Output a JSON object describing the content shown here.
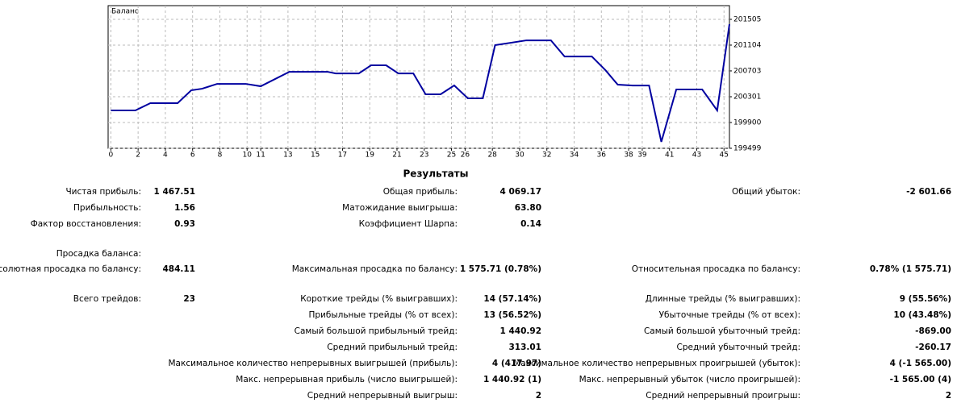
{
  "chart_data": {
    "type": "line",
    "title": "Баланс",
    "x": [
      0,
      1.8,
      2.9,
      4.9,
      5.9,
      6.7,
      7.8,
      9.9,
      11.0,
      13.1,
      15.9,
      16.5,
      18.2,
      19.1,
      20.2,
      21.1,
      22.2,
      23.1,
      24.2,
      25.2,
      26.2,
      27.3,
      28.2,
      30.5,
      32.3,
      33.3,
      35.3,
      36.3,
      37.2,
      38.3,
      39.5,
      40.4,
      41.5,
      43.4,
      44.5,
      45.4
    ],
    "series": [
      {
        "color": "#0000a0",
        "values": [
          200088,
          200088,
          200201,
          200201,
          200401,
          200426,
          200501,
          200501,
          200464,
          200689,
          200689,
          200664,
          200664,
          200790,
          200790,
          200664,
          200664,
          200339,
          200339,
          200476,
          200276,
          200276,
          201103,
          201178,
          201178,
          200927,
          200927,
          200714,
          200489,
          200476,
          200476,
          199599,
          200414,
          200414,
          200088,
          201429
        ]
      }
    ],
    "xlim": [
      -0.2,
      45.4
    ],
    "ylim": [
      199499,
      201718
    ],
    "xticks": [
      0,
      2,
      4,
      6,
      8,
      10,
      11,
      13,
      15,
      17,
      19,
      21,
      23,
      25,
      26,
      28,
      30,
      32,
      34,
      36,
      38,
      39,
      41,
      43,
      45
    ],
    "yticks": [
      199499,
      199900,
      200301,
      200703,
      201104,
      201505
    ],
    "grid": true
  },
  "results": {
    "title": "Результаты",
    "rows": [
      {
        "left": {
          "label": "Чистая прибыль:",
          "value": "1 467.51"
        },
        "middle": {
          "label": "Общая прибыль:",
          "value": "4 069.17"
        },
        "right": {
          "label": "Общий убыток:",
          "value": "-2 601.66"
        }
      },
      {
        "left": {
          "label": "Прибыльность:",
          "value": "1.56"
        },
        "middle": {
          "label": "Матожидание выигрыша:",
          "value": "63.80"
        }
      },
      {
        "left": {
          "label": "Фактор восстановления:",
          "value": "0.93"
        },
        "middle": {
          "label": "Коэффициент Шарпа:",
          "value": "0.14"
        }
      },
      {},
      {
        "left": {
          "label": "Просадка баланса:"
        }
      },
      {
        "left": {
          "label": "Абсолютная просадка по балансу:",
          "value": "484.11"
        },
        "middle": {
          "label": "Максимальная просадка по балансу:",
          "value": "1 575.71 (0.78%)"
        },
        "right": {
          "label": "Относительная просадка по балансу:",
          "value": "0.78% (1 575.71)"
        }
      },
      {},
      {
        "left": {
          "label": "Всего трейдов:",
          "value": "23"
        },
        "middle": {
          "label": "Короткие трейды (% выигравших):",
          "value": "14 (57.14%)"
        },
        "right": {
          "label": "Длинные трейды (% выигравших):",
          "value": "9 (55.56%)"
        }
      },
      {
        "middle": {
          "label": "Прибыльные трейды (% от всех):",
          "value": "13 (56.52%)"
        },
        "right": {
          "label": "Убыточные трейды (% от всех):",
          "value": "10 (43.48%)"
        }
      },
      {
        "middle": {
          "label": "Самый большой прибыльный трейд:",
          "value": "1 440.92"
        },
        "right": {
          "label": "Самый большой убыточный трейд:",
          "value": "-869.00"
        }
      },
      {
        "middle": {
          "label": "Средний прибыльный трейд:",
          "value": "313.01"
        },
        "right": {
          "label": "Средний убыточный трейд:",
          "value": "-260.17"
        }
      },
      {
        "middle": {
          "label": "Максимальное количество непрерывных выигрышей (прибыль):",
          "value": "4 (417.97)"
        },
        "right": {
          "label": "Максимальное количество непрерывных проигрышей (убыток):",
          "value": "4 (-1 565.00)"
        }
      },
      {
        "middle": {
          "label": "Макс. непрерывная прибыль (число выигрышей):",
          "value": "1 440.92 (1)"
        },
        "right": {
          "label": "Макс. непрерывный убыток (число проигрышей):",
          "value": "-1 565.00 (4)"
        }
      },
      {
        "middle": {
          "label": "Средний непрерывный выигрыш:",
          "value": "2"
        },
        "right": {
          "label": "Средний непрерывный проигрыш:",
          "value": "2"
        }
      }
    ]
  }
}
